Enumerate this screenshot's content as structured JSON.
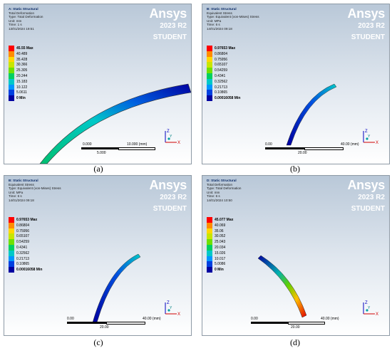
{
  "panels": [
    {
      "caption": "(a)",
      "info": [
        "A: Static Structural",
        "Total Deformation",
        "Type: Total Deformation",
        "Unit: mm",
        "Time: 1 s",
        "13/01/2024 19:51"
      ],
      "brand": {
        "logo": "Ansys",
        "version": "2023 R2",
        "edition": "STUDENT"
      },
      "legend": [
        "45.55 Max",
        "40.489",
        "35.428",
        "30.366",
        "25.305",
        "20.244",
        "15.183",
        "10.122",
        "5.0611",
        "0 Min"
      ],
      "scale": {
        "left": "0.000",
        "right": "10.000 (mm)",
        "mid": "5.000"
      },
      "axes": {
        "z": "Z",
        "x": "X",
        "y": "Y"
      }
    },
    {
      "caption": "(b)",
      "info": [
        "B: Static Structural",
        "Equivalent Stress",
        "Type: Equivalent (von-Mises) Stress",
        "Unit: MPa",
        "Time: 6 s",
        "14/01/2024 09:18"
      ],
      "brand": {
        "logo": "Ansys",
        "version": "2023 R2",
        "edition": "STUDENT"
      },
      "legend": [
        "0.97653 Max",
        "0.86804",
        "0.75956",
        "0.65107",
        "0.54259",
        "0.4341",
        "0.32562",
        "0.21713",
        "0.10865",
        "0.00016058 Min"
      ],
      "scale": {
        "left": "0.00",
        "right": "40.00 (mm)",
        "mid": "20.00"
      },
      "axes": {
        "z": "Z",
        "x": "X",
        "y": "Y"
      }
    },
    {
      "caption": "(c)",
      "info": [
        "B: Static Structural",
        "Equivalent Stress",
        "Type: Equivalent (von-Mises) Stress",
        "Unit: MPa",
        "Time: 6 s",
        "14/01/2024 09:18"
      ],
      "brand": {
        "logo": "Ansys",
        "version": "2023 R2",
        "edition": "STUDENT"
      },
      "legend": [
        "0.97653 Max",
        "0.86804",
        "0.75956",
        "0.65107",
        "0.54259",
        "0.4341",
        "0.32562",
        "0.21713",
        "0.10865",
        "0.00016058 Min"
      ],
      "scale": {
        "left": "0.00",
        "right": "40.00 (mm)",
        "mid": "20.00"
      },
      "axes": {
        "z": "Z",
        "x": "X",
        "y": "Y"
      }
    },
    {
      "caption": "(d)",
      "info": [
        "D: Static Structural",
        "Total Deformation",
        "Type: Total Deformation",
        "Unit: mm",
        "Time: 6 s",
        "14/01/2024 10:50"
      ],
      "brand": {
        "logo": "Ansys",
        "version": "2023 R2",
        "edition": "STUDENT"
      },
      "legend": [
        "45.077 Max",
        "40.069",
        "35.06",
        "30.052",
        "25.043",
        "20.034",
        "15.026",
        "10.017",
        "5.0086",
        "0 Min"
      ],
      "scale": {
        "left": "0.00",
        "right": "40.00 (mm)",
        "mid": "20.00"
      },
      "axes": {
        "z": "Z",
        "x": "X",
        "y": "Y"
      }
    }
  ],
  "legend_colors": [
    "#ff0000",
    "#ff8c00",
    "#ffd800",
    "#c8e600",
    "#6fe000",
    "#00d060",
    "#00c8c8",
    "#0096ff",
    "#0040e0",
    "#0000a0"
  ]
}
